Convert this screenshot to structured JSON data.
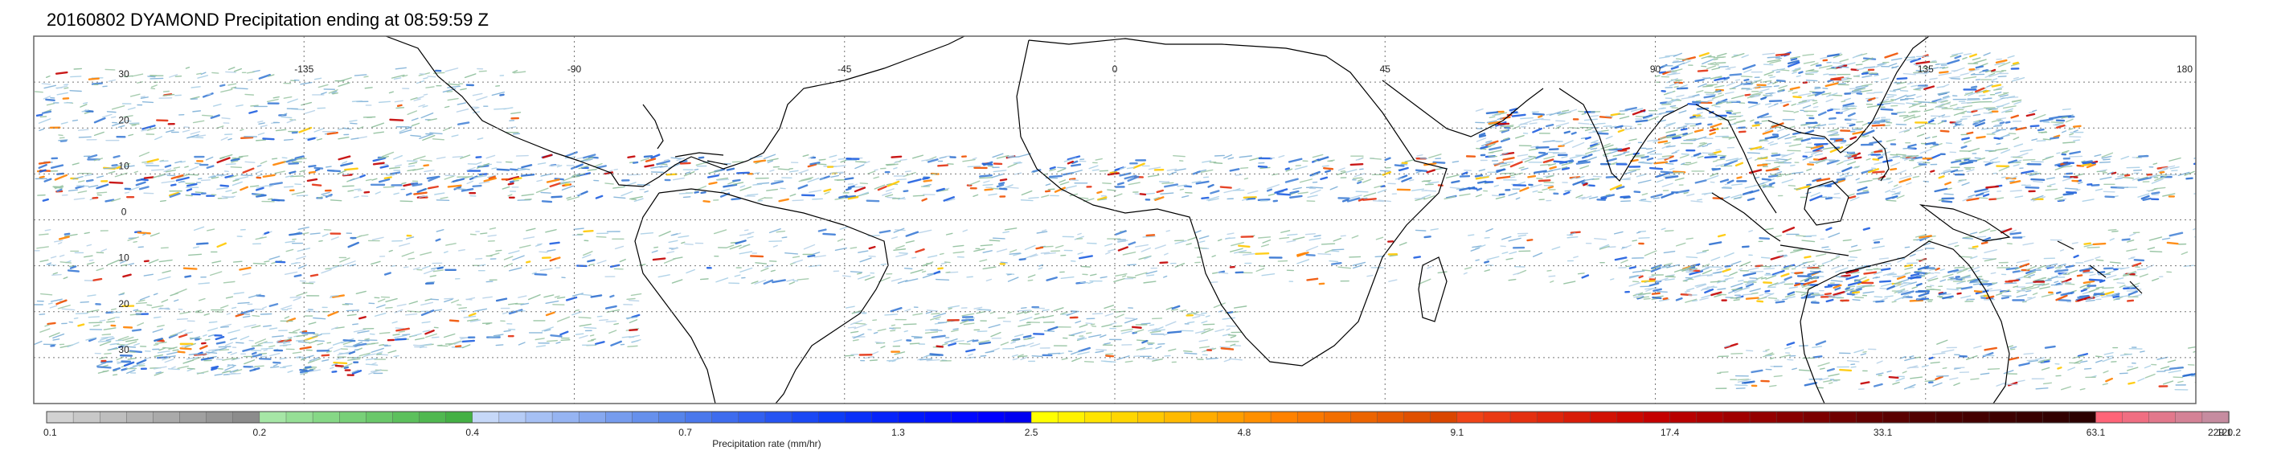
{
  "title": "20160802 DYAMOND Precipitation ending at 08:59:59 Z",
  "map": {
    "lon_range": [
      -180,
      180
    ],
    "lat_range": [
      -40,
      40
    ],
    "lat_labels": [
      "30",
      "20",
      "10",
      "0",
      "10",
      "20",
      "30"
    ],
    "lat_values": [
      30,
      20,
      10,
      0,
      -10,
      -20,
      -30
    ],
    "lon_labels": [
      "-135",
      "-90",
      "-45",
      "0",
      "45",
      "90",
      "135",
      "180"
    ],
    "lon_values": [
      -135,
      -90,
      -45,
      0,
      45,
      90,
      135,
      180
    ],
    "grid": "dotted",
    "coastline_color": "#000000"
  },
  "colorbar": {
    "title": "Precipitation rate (mm/hr)",
    "tick_labels": [
      "0.1",
      "0.2",
      "0.4",
      "0.7",
      "1.3",
      "2.5",
      "4.8",
      "9.1",
      "17.4",
      "33.1",
      "63.1",
      "120.2",
      "229.1"
    ],
    "colors": [
      "#d2d2d2",
      "#c8c8c8",
      "#bebebe",
      "#b4b4b4",
      "#aaaaaa",
      "#a0a0a0",
      "#969696",
      "#8c8c8c",
      "#a6e6a6",
      "#96df96",
      "#86d886",
      "#78d078",
      "#6ac86a",
      "#5cc05c",
      "#50b850",
      "#44b044",
      "#c6d8f8",
      "#b6ccf6",
      "#a6c0f4",
      "#96b4f2",
      "#86a8f0",
      "#769cee",
      "#6690ec",
      "#5684ea",
      "#4a78ec",
      "#3e6cee",
      "#3260f0",
      "#2654f2",
      "#1a48f4",
      "#0e3cf6",
      "#0a30f8",
      "#0624fa",
      "#0018fc",
      "#0010fe",
      "#0008ff",
      "#0000ff",
      "#0000f0",
      "#ffff00",
      "#fff200",
      "#ffe400",
      "#ffd600",
      "#ffc800",
      "#ffba00",
      "#ffac00",
      "#ff9e00",
      "#ff9000",
      "#ff8200",
      "#f97800",
      "#f26e00",
      "#ec6400",
      "#e65a00",
      "#e05000",
      "#da4600",
      "#f04418",
      "#ea3a14",
      "#e43010",
      "#de260c",
      "#d81c08",
      "#d21204",
      "#cc0800",
      "#c40000",
      "#b80000",
      "#ac0000",
      "#a00000",
      "#940000",
      "#880000",
      "#7c0000",
      "#700000",
      "#640000",
      "#5a0000",
      "#520000",
      "#4a0000",
      "#440000",
      "#3e0000",
      "#380000",
      "#320000",
      "#2c0000",
      "#ff6478",
      "#f06e82",
      "#e2788c",
      "#d48296",
      "#c68ca0"
    ]
  }
}
